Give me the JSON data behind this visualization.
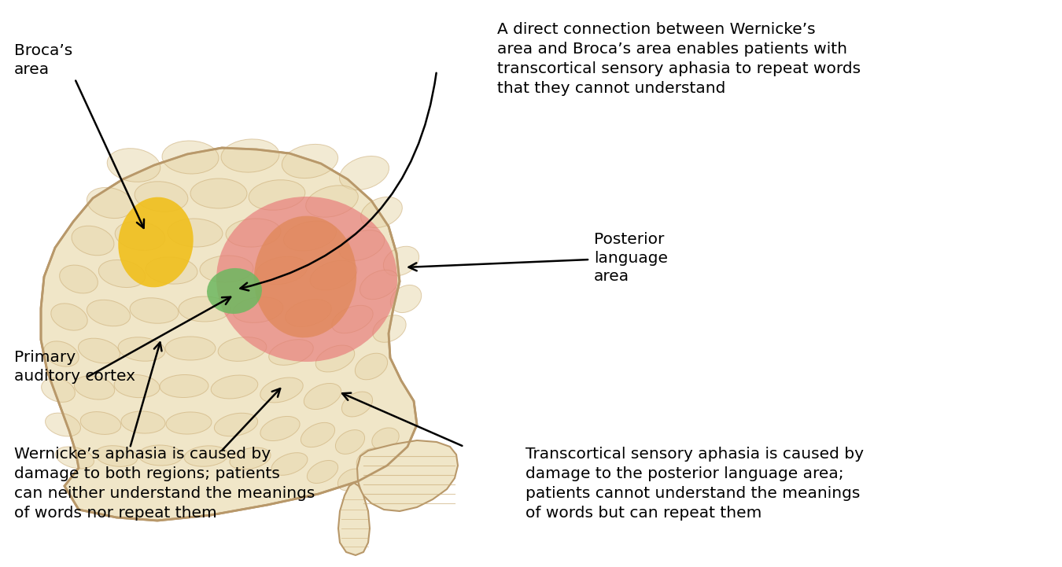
{
  "background_color": "#ffffff",
  "brain_base_color": "#f0e6c8",
  "gyrus_color": "#e8d9b0",
  "gyrus_edge": "#c8a870",
  "brain_edge_color": "#b8986a",
  "broca_color": "#f0c020",
  "posterior_language_color": "#e87878",
  "wernicke_center_color": "#e08858",
  "primary_auditory_color": "#6db860",
  "text_color": "#000000",
  "font_size": 14.5,
  "annotations": {
    "brocas_area": "Broca’s\narea",
    "primary_auditory": "Primary\nauditory cortex",
    "posterior_language": "Posterior\nlanguage\narea",
    "top_right": "A direct connection between Wernicke’s\narea and Broca’s area enables patients with\ntranscortical sensory aphasia to repeat words\nthat they cannot understand",
    "bottom_left": "Wernicke’s aphasia is caused by\ndamage to both regions; patients\ncan neither understand the meanings\nof words nor repeat them",
    "bottom_right": "Transcortical sensory aphasia is caused by\ndamage to the posterior language area;\npatients cannot understand the meanings\nof words but can repeat them"
  }
}
